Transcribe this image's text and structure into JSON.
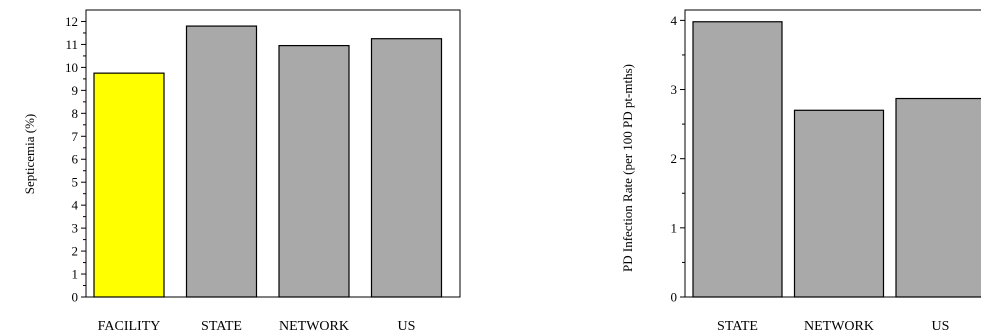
{
  "chart_data": [
    {
      "type": "bar",
      "categories": [
        "FACILITY",
        "STATE",
        "NETWORK",
        "US"
      ],
      "values": [
        9.75,
        11.8,
        10.95,
        11.25
      ],
      "colors": [
        "#ffff00",
        "#a9a9a9",
        "#a9a9a9",
        "#a9a9a9"
      ],
      "title": "",
      "xlabel": "",
      "ylabel": "Septicemia (%)",
      "ylim": [
        0,
        12.5
      ],
      "yticks": [
        0,
        1,
        2,
        3,
        4,
        5,
        6,
        7,
        8,
        9,
        10,
        11,
        12
      ],
      "grid": false
    },
    {
      "type": "bar",
      "categories": [
        "STATE",
        "NETWORK",
        "US"
      ],
      "values": [
        3.98,
        2.7,
        2.87
      ],
      "colors": [
        "#a9a9a9",
        "#a9a9a9",
        "#a9a9a9"
      ],
      "title": "",
      "xlabel": "",
      "ylabel": "PD Infection Rate (per 100 PD pt-mths)",
      "ylim": [
        0,
        4.15
      ],
      "yticks": [
        0,
        1,
        2,
        3,
        4
      ],
      "grid": false
    }
  ]
}
